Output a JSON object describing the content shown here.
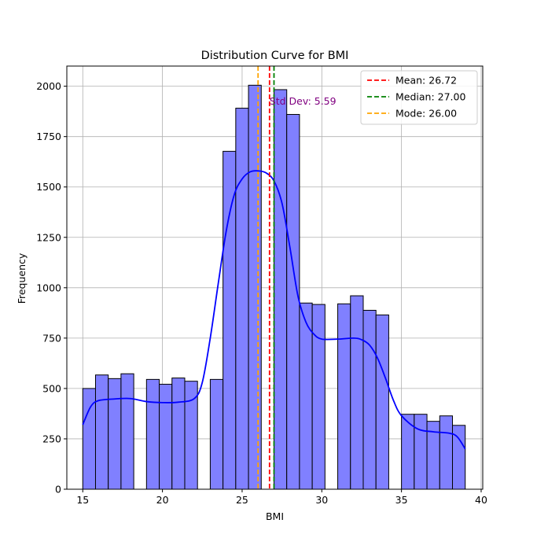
{
  "chart_data": {
    "type": "bar",
    "title": "Distribution Curve for BMI",
    "xlabel": "BMI",
    "ylabel": "Frequency",
    "xlim": [
      14,
      40.1
    ],
    "ylim": [
      0,
      2100
    ],
    "xticks": [
      15,
      20,
      25,
      30,
      35,
      40
    ],
    "yticks": [
      0,
      250,
      500,
      750,
      1000,
      1250,
      1500,
      1750,
      2000
    ],
    "grid": true,
    "bin_width": 0.8,
    "bins": [
      {
        "x0": 15.0,
        "count": 500
      },
      {
        "x0": 15.8,
        "count": 567
      },
      {
        "x0": 16.6,
        "count": 549
      },
      {
        "x0": 17.4,
        "count": 573
      },
      {
        "x0": 19.0,
        "count": 545
      },
      {
        "x0": 19.8,
        "count": 521
      },
      {
        "x0": 20.6,
        "count": 552
      },
      {
        "x0": 21.4,
        "count": 536
      },
      {
        "x0": 23.0,
        "count": 545
      },
      {
        "x0": 23.8,
        "count": 1677
      },
      {
        "x0": 24.6,
        "count": 1891
      },
      {
        "x0": 25.4,
        "count": 2005
      },
      {
        "x0": 27.0,
        "count": 1983
      },
      {
        "x0": 27.8,
        "count": 1860
      },
      {
        "x0": 28.6,
        "count": 924
      },
      {
        "x0": 29.4,
        "count": 917
      },
      {
        "x0": 31.0,
        "count": 920
      },
      {
        "x0": 31.8,
        "count": 960
      },
      {
        "x0": 32.6,
        "count": 888
      },
      {
        "x0": 33.4,
        "count": 865
      },
      {
        "x0": 35.0,
        "count": 372
      },
      {
        "x0": 35.8,
        "count": 372
      },
      {
        "x0": 36.6,
        "count": 337
      },
      {
        "x0": 37.4,
        "count": 364
      },
      {
        "x0": 38.2,
        "count": 317
      }
    ],
    "kde": {
      "x": [
        15,
        15.5,
        16,
        17,
        18,
        19,
        20,
        21,
        22,
        22.5,
        23,
        23.5,
        24,
        24.5,
        25,
        25.5,
        26,
        26.5,
        27,
        27.5,
        28,
        28.5,
        29,
        29.5,
        30,
        31,
        32,
        32.5,
        33,
        33.5,
        34,
        34.5,
        35,
        36,
        37,
        38,
        38.5,
        39
      ],
      "y": [
        320,
        410,
        440,
        448,
        450,
        435,
        430,
        432,
        450,
        530,
        750,
        1020,
        1280,
        1460,
        1540,
        1575,
        1580,
        1570,
        1530,
        1420,
        1200,
        960,
        830,
        770,
        745,
        745,
        750,
        742,
        715,
        650,
        550,
        440,
        365,
        300,
        285,
        278,
        260,
        200
      ]
    },
    "lines": [
      {
        "label": "Mean: 26.72",
        "value": 26.72,
        "color": "#ff0000"
      },
      {
        "label": "Median: 27.00",
        "value": 27.0,
        "color": "#008000"
      },
      {
        "label": "Mode: 26.00",
        "value": 26.0,
        "color": "#ffa500"
      }
    ],
    "annotation": {
      "text": "Std Dev: 5.59",
      "x": 26.72,
      "y": 1900,
      "color": "#800080"
    },
    "colors": {
      "bar_fill": "#8080ff",
      "bar_edge": "#000000",
      "kde": "#0000ff",
      "grid": "#b0b0b0"
    },
    "legend_position": "top-right"
  }
}
